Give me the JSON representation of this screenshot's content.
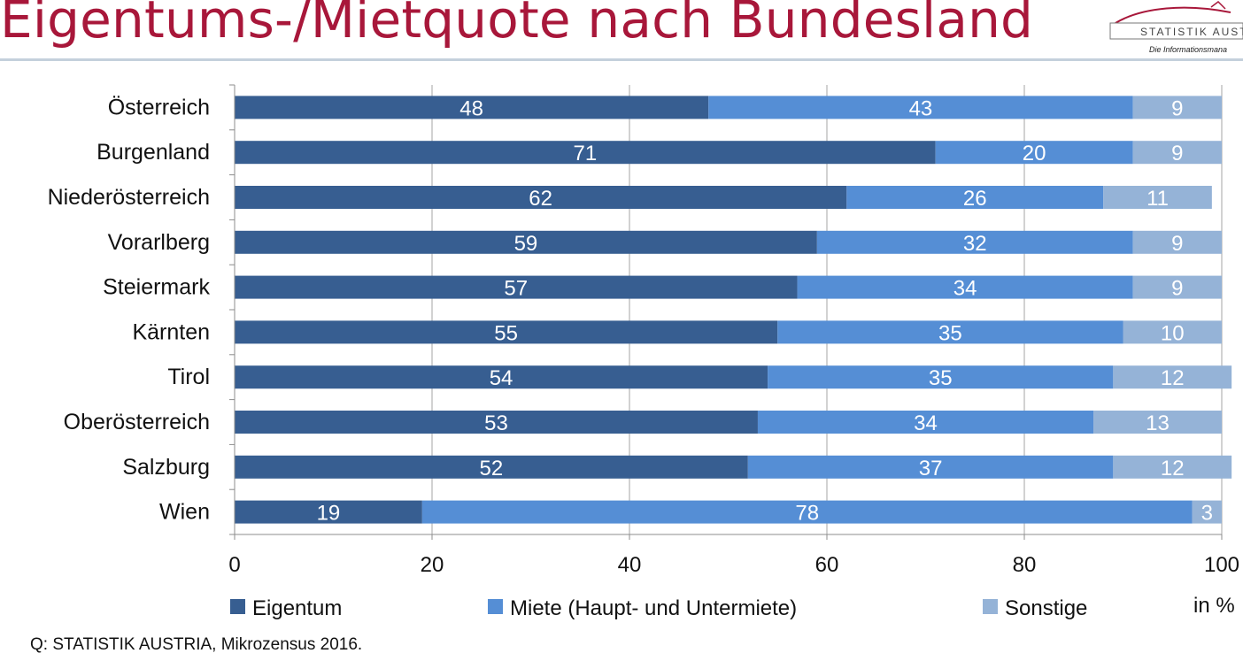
{
  "title": "Eigentums-/Mietquote nach Bundesland",
  "logo": {
    "name": "STATISTIK AUST",
    "tagline": "Die Informationsmana"
  },
  "unit_label": "in %",
  "source": "Q: STATISTIK AUSTRIA, Mikrozensus 2016.",
  "colors": {
    "eigentum": "#375e91",
    "miete": "#558ed5",
    "sonstige": "#95b3d7",
    "title": "#a8173a"
  },
  "chart_data": {
    "type": "bar",
    "orientation": "horizontal",
    "stacked": true,
    "categories": [
      "Österreich",
      "Burgenland",
      "Niederösterreich",
      "Vorarlberg",
      "Steiermark",
      "Kärnten",
      "Tirol",
      "Oberösterreich",
      "Salzburg",
      "Wien"
    ],
    "series": [
      {
        "name": "Eigentum",
        "values": [
          48,
          71,
          62,
          59,
          57,
          55,
          54,
          53,
          52,
          19
        ]
      },
      {
        "name": "Miete (Haupt- und Untermiete)",
        "values": [
          43,
          20,
          26,
          32,
          34,
          35,
          35,
          34,
          37,
          78
        ]
      },
      {
        "name": "Sonstige",
        "values": [
          9,
          9,
          11,
          9,
          9,
          10,
          12,
          13,
          12,
          3
        ]
      }
    ],
    "xlim": [
      0,
      100
    ],
    "xticks": [
      0,
      20,
      40,
      60,
      80,
      100
    ],
    "grid": true,
    "legend": "bottom"
  }
}
